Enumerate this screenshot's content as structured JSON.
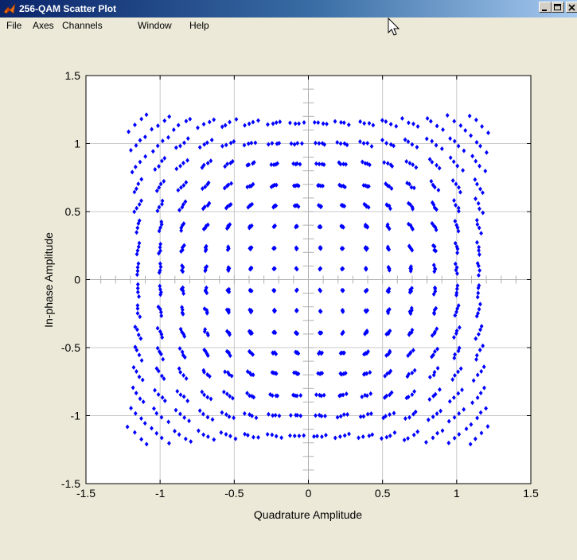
{
  "window": {
    "title": "256-QAM Scatter Plot",
    "controls": {
      "minimize": "_",
      "maximize": "□",
      "close": "×"
    }
  },
  "menu": {
    "items": [
      "File",
      "Axes",
      "Channels",
      "Window",
      "Help"
    ]
  },
  "colors": {
    "marker": "#0000ff",
    "grid": "#c8c8c8",
    "titlebar_start": "#0a246a",
    "titlebar_end": "#a6caf0"
  },
  "chart_data": {
    "type": "scatter",
    "title": "",
    "xlabel": "Quadrature Amplitude",
    "ylabel": "In-phase Amplitude",
    "xlim": [
      -1.5,
      1.5
    ],
    "ylim": [
      -1.5,
      1.5
    ],
    "xticks": [
      -1.5,
      -1,
      -0.5,
      0,
      0.5,
      1,
      1.5
    ],
    "yticks": [
      -1.5,
      -1,
      -0.5,
      0,
      0.5,
      1,
      1.5
    ],
    "xtick_labels": [
      "-1.5",
      "-1",
      "-0.5",
      "0",
      "0.5",
      "1",
      "1.5"
    ],
    "ytick_labels": [
      "-1.5",
      "-1",
      "-0.5",
      "0",
      "0.5",
      "1",
      "1.5"
    ],
    "grid": true,
    "marker": "diamond",
    "series": [
      {
        "levels": [
          -1.15,
          -1.0,
          -0.85,
          -0.69,
          -0.54,
          -0.39,
          -0.23,
          -0.08,
          0.08,
          0.23,
          0.39,
          0.54,
          0.69,
          0.85,
          1.0,
          1.15
        ],
        "note_points_per_symbol": 4
      }
    ]
  }
}
